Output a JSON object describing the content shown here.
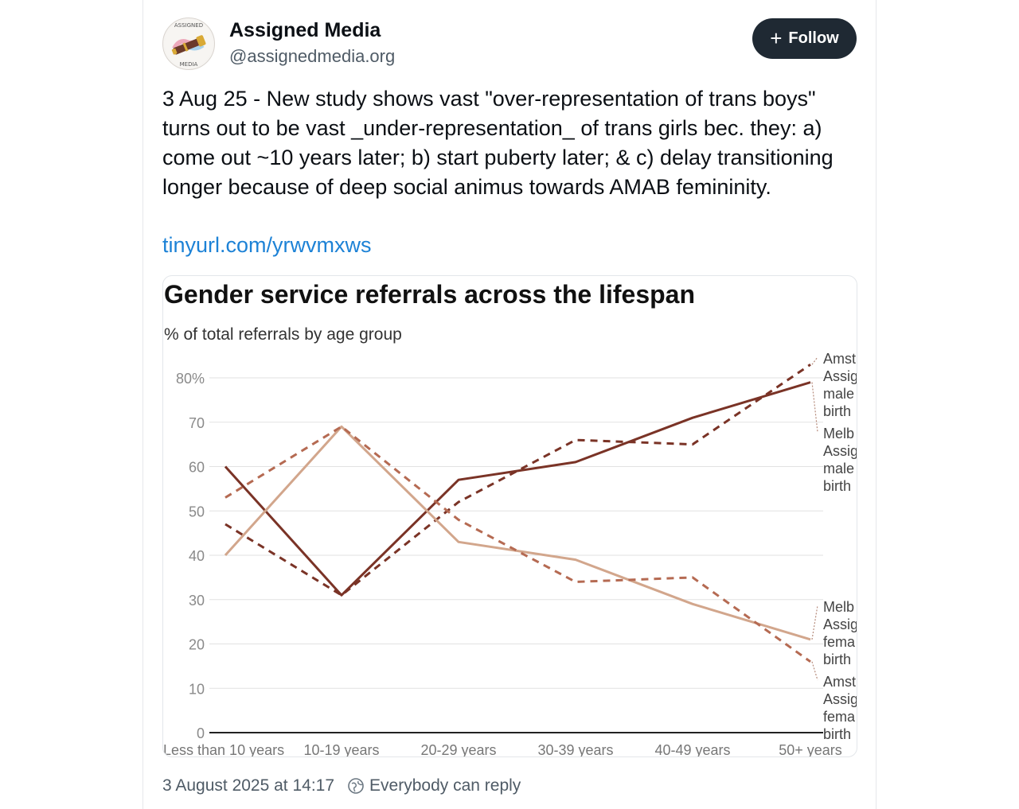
{
  "post": {
    "author_name": "Assigned Media",
    "author_handle": "@assignedmedia.org",
    "avatar_text_top": "ASSIGNED",
    "avatar_text_bottom": "MEDIA",
    "follow_label": "Follow",
    "text": "3 Aug 25 - New study shows vast \"over-representation of trans boys\" turns out to be vast _under-representation_ of trans girls bec. they: a) come out ~10 years later; b) start puberty later; & c) delay transitioning longer because of deep social animus towards AMAB femininity.",
    "link_text": "tinyurl.com/yrwvmxws",
    "timestamp": "3 August 2025 at 14:17",
    "reply_setting": "Everybody can reply"
  },
  "colors": {
    "follow_bg": "#1f2933",
    "link": "#1d82d6",
    "series_dark": "#7a3326",
    "series_mid": "#b56a52",
    "series_light": "#d2a68c"
  },
  "chart_data": {
    "type": "line",
    "title": "Gender service referrals across the lifespan",
    "subtitle": "% of total referrals by age group",
    "categories": [
      "Less than 10 years",
      "10-19 years",
      "20-29 years",
      "30-39 years",
      "40-49 years",
      "50+ years"
    ],
    "ylim": [
      0,
      80
    ],
    "yticks": [
      0,
      10,
      20,
      30,
      40,
      50,
      60,
      70,
      80
    ],
    "ytick_labels": [
      "0",
      "10",
      "20",
      "30",
      "40",
      "50",
      "60",
      "70",
      "80%"
    ],
    "grid": true,
    "legend": "direct labels at right",
    "series": [
      {
        "key": "ams_male",
        "values": [
          47,
          31,
          52,
          66,
          65,
          83
        ],
        "style": "dashed",
        "color": "#7a3326",
        "label_lines": [
          "Amst",
          "Assig",
          "male",
          "birth"
        ]
      },
      {
        "key": "mel_male",
        "values": [
          60,
          31,
          57,
          61,
          71,
          79
        ],
        "style": "solid",
        "color": "#7a3326",
        "label_lines": [
          "Melb",
          "Assig",
          "male",
          "birth"
        ]
      },
      {
        "key": "mel_female",
        "values": [
          40,
          69,
          43,
          39,
          29,
          21
        ],
        "style": "solid",
        "color": "#d2a68c",
        "label_lines": [
          "Melb",
          "Assig",
          "fema",
          "birth"
        ]
      },
      {
        "key": "ams_female",
        "values": [
          53,
          69,
          48,
          34,
          35,
          16
        ],
        "style": "dashed",
        "color": "#b56a52",
        "label_lines": [
          "Amst",
          "Assig",
          "fema",
          "birth"
        ]
      }
    ]
  }
}
